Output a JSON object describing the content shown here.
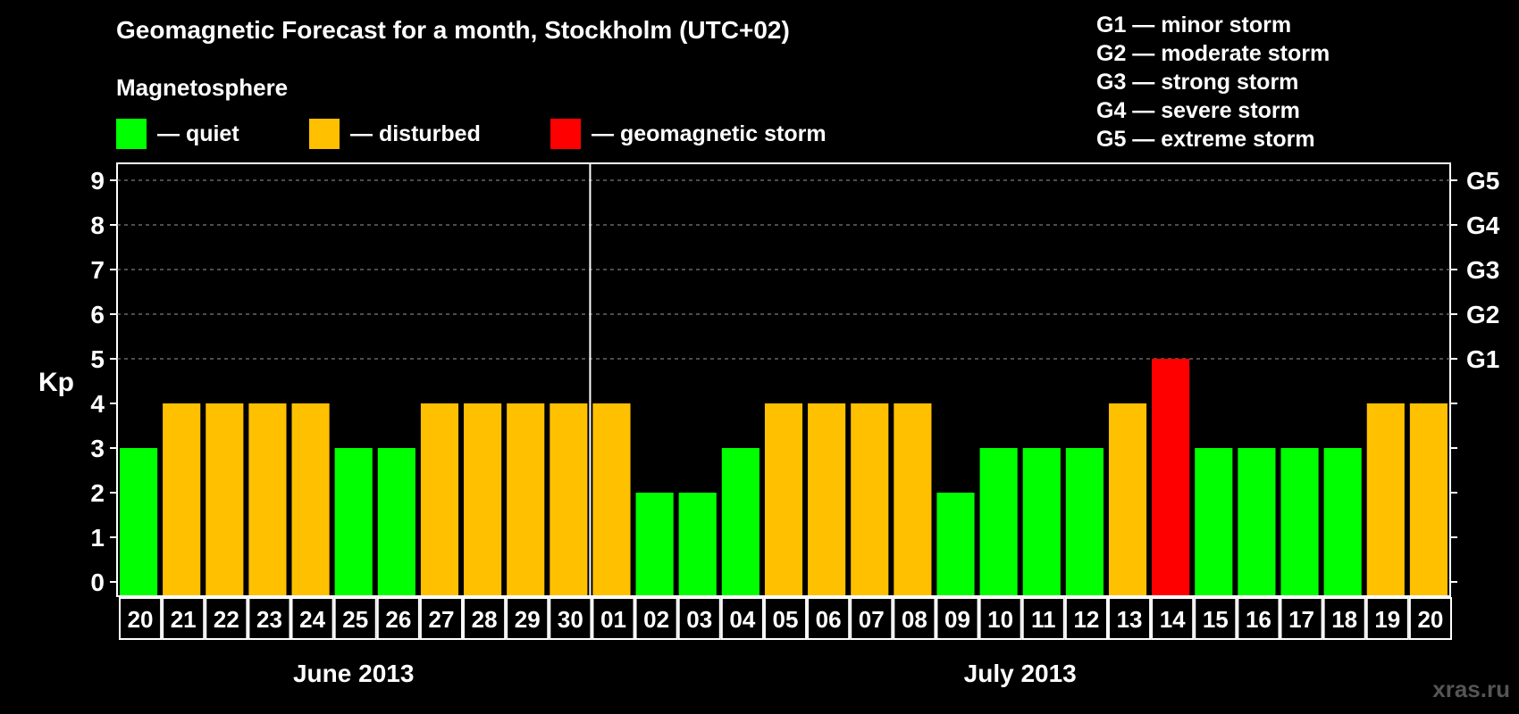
{
  "header": {
    "title": "Geomagnetic Forecast for a month, Stockholm (UTC+02)",
    "subtitle": "Magnetosphere"
  },
  "legend": [
    {
      "label": "— quiet",
      "color": "#00ff00"
    },
    {
      "label": "— disturbed",
      "color": "#ffc000"
    },
    {
      "label": "— geomagnetic storm",
      "color": "#ff0000"
    }
  ],
  "storm_scale": [
    "G1 — minor storm",
    "G2 — moderate storm",
    "G3 — strong storm",
    "G4 — severe storm",
    "G5 — extreme storm"
  ],
  "watermark": "xras.ru",
  "chart_data": {
    "type": "bar",
    "ylabel": "Kp",
    "ylim": [
      0,
      9
    ],
    "yticks": [
      "0",
      "1",
      "2",
      "3",
      "4",
      "5",
      "6",
      "7",
      "8",
      "9"
    ],
    "right_axis_labels": [
      {
        "value": 5,
        "label": "G1"
      },
      {
        "value": 6,
        "label": "G2"
      },
      {
        "value": 7,
        "label": "G3"
      },
      {
        "value": 8,
        "label": "G4"
      },
      {
        "value": 9,
        "label": "G5"
      }
    ],
    "categories": [
      "20",
      "21",
      "22",
      "23",
      "24",
      "25",
      "26",
      "27",
      "28",
      "29",
      "30",
      "01",
      "02",
      "03",
      "04",
      "05",
      "06",
      "07",
      "08",
      "09",
      "10",
      "11",
      "12",
      "13",
      "14",
      "15",
      "16",
      "17",
      "18",
      "19",
      "20"
    ],
    "values": [
      3,
      4,
      4,
      4,
      4,
      3,
      3,
      4,
      4,
      4,
      4,
      4,
      2,
      2,
      3,
      4,
      4,
      4,
      4,
      2,
      3,
      3,
      3,
      4,
      5,
      3,
      3,
      3,
      3,
      4,
      4
    ],
    "colors": {
      "quiet": "#00ff00",
      "disturbed": "#ffc000",
      "storm": "#ff0000"
    },
    "months": [
      {
        "label": "June 2013",
        "start": 0,
        "end": 10
      },
      {
        "label": "July 2013",
        "start": 11,
        "end": 30
      }
    ],
    "grid": true,
    "legend_position": "top"
  }
}
